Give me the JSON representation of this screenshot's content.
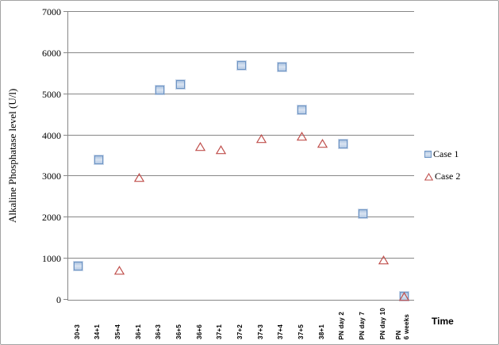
{
  "frame": {
    "background": "#ffffff",
    "border_color": "#a3a3a3"
  },
  "colors": {
    "gridline": "#878787",
    "axis_line": "#878787",
    "text": "#000000",
    "case1_marker_border": "#6d94c4",
    "case1_marker_fill": "#c9d8ec",
    "case2_marker_stroke": "#c0504d"
  },
  "chart_data": {
    "type": "scatter",
    "title": "",
    "xlabel": "Time",
    "ylabel": "Alkaline Phosphatase level (U/l)",
    "ylim": [
      0,
      7000
    ],
    "ytick_interval": 1000,
    "grid": "horizontal",
    "legend_position": "right",
    "x_label_rotation": "90deg-up",
    "categories": [
      "30+3",
      "34+1",
      "35+4",
      "36+1",
      "36+3",
      "36+5",
      "36+6",
      "37+1",
      "37+2",
      "37+3",
      "37+4",
      "37+5",
      "38+1",
      "PN day 2",
      "PN day 7",
      "PN day 10",
      "PN\n6 weeks"
    ],
    "series": [
      {
        "name": "Case 1",
        "marker": "square",
        "values": [
          820,
          3400,
          null,
          null,
          5100,
          5240,
          null,
          null,
          5700,
          null,
          5660,
          4610,
          null,
          3780,
          2100,
          null,
          90
        ]
      },
      {
        "name": "Case 2",
        "marker": "triangle",
        "values": [
          null,
          null,
          740,
          2990,
          null,
          null,
          3740,
          3670,
          null,
          3930,
          null,
          4000,
          3820,
          null,
          null,
          990,
          100
        ]
      }
    ]
  }
}
